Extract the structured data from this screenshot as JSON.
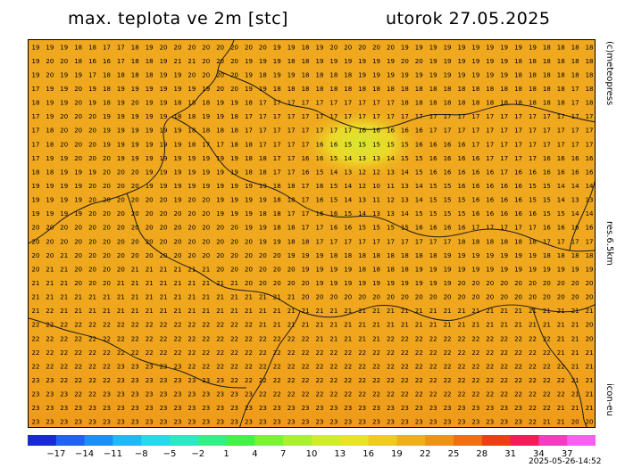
{
  "header": {
    "title": "max. teplota ve 2m [stc]",
    "date": "utorok 27.05.2025"
  },
  "side_labels": {
    "credit": "(c)meteopress",
    "resolution": "res.6.5km",
    "model": "icon-eu"
  },
  "footer": {
    "run_time": "2025-05-26-14:52"
  },
  "colorbar": {
    "tick_labels": [
      "−17",
      "−14",
      "−11",
      "−8",
      "−5",
      "−2",
      "1",
      "4",
      "7",
      "10",
      "13",
      "16",
      "19",
      "22",
      "25",
      "28",
      "31",
      "34",
      "37"
    ],
    "colors": [
      "#1a2ad2",
      "#1f63ee",
      "#1c8ff5",
      "#22b8f7",
      "#29d7f1",
      "#2fe7c5",
      "#34ef86",
      "#44f246",
      "#7af235",
      "#a9f032",
      "#cfec2f",
      "#e9e22b",
      "#f1c923",
      "#f0ae1e",
      "#ef9318",
      "#ee6f14",
      "#ea4012",
      "#ef1e59",
      "#f23cc4",
      "#f75ff3"
    ]
  },
  "map": {
    "grid": {
      "cols": 40,
      "rows": 28,
      "rows_values": [
        [
          19,
          19,
          19,
          18,
          18,
          17,
          17,
          18,
          19,
          20,
          20,
          20,
          20,
          20,
          20,
          20,
          20,
          19,
          19,
          18,
          19,
          20,
          20,
          20,
          20,
          20,
          19,
          19,
          19,
          19,
          19,
          19,
          19,
          19,
          19,
          19,
          18,
          18,
          18,
          18
        ],
        [
          19,
          20,
          20,
          18,
          16,
          16,
          17,
          18,
          18,
          19,
          21,
          21,
          20,
          20,
          20,
          19,
          19,
          19,
          18,
          18,
          19,
          19,
          19,
          19,
          19,
          19,
          20,
          20,
          19,
          19,
          19,
          19,
          19,
          19,
          18,
          18,
          18,
          18,
          18,
          18
        ],
        [
          19,
          20,
          19,
          19,
          17,
          18,
          18,
          18,
          18,
          19,
          19,
          20,
          20,
          20,
          20,
          19,
          18,
          19,
          19,
          18,
          18,
          18,
          18,
          19,
          19,
          19,
          19,
          19,
          19,
          19,
          19,
          19,
          19,
          19,
          18,
          18,
          18,
          18,
          18,
          18
        ],
        [
          17,
          19,
          19,
          20,
          19,
          18,
          19,
          19,
          19,
          19,
          19,
          19,
          19,
          20,
          20,
          19,
          19,
          18,
          18,
          18,
          18,
          18,
          18,
          18,
          18,
          18,
          18,
          18,
          18,
          18,
          18,
          18,
          18,
          18,
          18,
          18,
          18,
          18,
          17,
          18
        ],
        [
          18,
          19,
          19,
          20,
          19,
          18,
          19,
          20,
          19,
          19,
          18,
          18,
          18,
          19,
          19,
          18,
          17,
          17,
          17,
          17,
          17,
          17,
          17,
          17,
          17,
          17,
          18,
          18,
          18,
          18,
          18,
          18,
          18,
          18,
          18,
          18,
          18,
          18,
          17,
          18
        ],
        [
          17,
          19,
          20,
          20,
          20,
          19,
          19,
          19,
          19,
          19,
          18,
          18,
          19,
          19,
          18,
          17,
          17,
          17,
          17,
          17,
          17,
          17,
          17,
          17,
          17,
          17,
          17,
          17,
          17,
          17,
          17,
          17,
          17,
          17,
          17,
          17,
          17,
          17,
          17,
          17
        ],
        [
          17,
          18,
          20,
          20,
          20,
          19,
          19,
          19,
          19,
          19,
          19,
          18,
          18,
          18,
          18,
          17,
          17,
          17,
          17,
          17,
          17,
          17,
          17,
          16,
          16,
          16,
          16,
          16,
          17,
          17,
          17,
          17,
          17,
          17,
          17,
          17,
          17,
          17,
          17,
          17
        ],
        [
          17,
          18,
          20,
          20,
          20,
          19,
          19,
          19,
          19,
          19,
          19,
          18,
          17,
          17,
          18,
          18,
          17,
          17,
          17,
          17,
          16,
          16,
          15,
          15,
          15,
          15,
          15,
          16,
          16,
          16,
          16,
          17,
          17,
          17,
          17,
          17,
          17,
          17,
          17,
          17
        ],
        [
          17,
          19,
          19,
          20,
          20,
          20,
          19,
          19,
          19,
          19,
          19,
          19,
          19,
          19,
          19,
          18,
          18,
          17,
          17,
          16,
          16,
          15,
          14,
          13,
          13,
          14,
          15,
          15,
          16,
          16,
          16,
          16,
          17,
          17,
          17,
          17,
          16,
          16,
          16,
          16
        ],
        [
          18,
          18,
          19,
          19,
          19,
          20,
          20,
          20,
          19,
          19,
          19,
          19,
          19,
          19,
          19,
          18,
          18,
          17,
          17,
          16,
          15,
          14,
          13,
          12,
          12,
          13,
          14,
          15,
          16,
          16,
          16,
          16,
          16,
          17,
          16,
          16,
          16,
          16,
          16,
          16
        ],
        [
          19,
          19,
          19,
          19,
          20,
          20,
          20,
          20,
          19,
          19,
          19,
          19,
          19,
          19,
          19,
          19,
          19,
          18,
          18,
          17,
          16,
          15,
          14,
          12,
          10,
          11,
          13,
          14,
          15,
          15,
          16,
          16,
          16,
          16,
          16,
          15,
          15,
          14,
          14,
          14
        ],
        [
          19,
          19,
          19,
          19,
          20,
          20,
          20,
          20,
          20,
          20,
          19,
          20,
          20,
          19,
          19,
          19,
          19,
          18,
          18,
          17,
          16,
          15,
          14,
          13,
          11,
          12,
          13,
          14,
          15,
          15,
          15,
          16,
          16,
          16,
          16,
          15,
          15,
          14,
          13,
          13
        ],
        [
          19,
          19,
          19,
          19,
          20,
          20,
          20,
          20,
          20,
          20,
          20,
          20,
          20,
          19,
          19,
          19,
          18,
          18,
          17,
          17,
          16,
          16,
          15,
          14,
          13,
          13,
          14,
          15,
          15,
          15,
          15,
          16,
          16,
          16,
          16,
          16,
          15,
          15,
          14,
          14
        ],
        [
          20,
          20,
          20,
          20,
          20,
          20,
          20,
          20,
          20,
          20,
          20,
          20,
          20,
          20,
          20,
          19,
          19,
          18,
          18,
          17,
          17,
          16,
          16,
          15,
          15,
          15,
          15,
          16,
          16,
          16,
          16,
          17,
          17,
          17,
          17,
          17,
          16,
          16,
          16,
          16
        ],
        [
          20,
          20,
          20,
          20,
          20,
          20,
          20,
          20,
          20,
          20,
          20,
          20,
          20,
          20,
          20,
          20,
          19,
          19,
          18,
          18,
          17,
          17,
          17,
          17,
          17,
          17,
          17,
          17,
          17,
          17,
          18,
          18,
          18,
          18,
          18,
          18,
          17,
          17,
          17,
          17
        ],
        [
          20,
          20,
          21,
          20,
          20,
          20,
          20,
          20,
          20,
          20,
          20,
          20,
          20,
          20,
          20,
          20,
          20,
          20,
          19,
          19,
          19,
          18,
          18,
          18,
          18,
          18,
          18,
          18,
          18,
          19,
          19,
          19,
          19,
          19,
          19,
          19,
          18,
          18,
          18,
          18
        ],
        [
          20,
          21,
          21,
          20,
          20,
          20,
          20,
          21,
          21,
          21,
          21,
          21,
          21,
          20,
          20,
          20,
          20,
          20,
          20,
          19,
          19,
          19,
          19,
          18,
          18,
          18,
          18,
          19,
          19,
          19,
          19,
          19,
          19,
          19,
          19,
          19,
          19,
          19,
          19,
          19
        ],
        [
          21,
          21,
          21,
          20,
          20,
          20,
          21,
          21,
          21,
          21,
          21,
          21,
          21,
          21,
          21,
          20,
          20,
          20,
          20,
          20,
          19,
          19,
          19,
          19,
          19,
          19,
          19,
          19,
          19,
          19,
          20,
          20,
          20,
          20,
          20,
          20,
          20,
          20,
          20,
          20
        ],
        [
          21,
          21,
          21,
          21,
          21,
          21,
          21,
          21,
          21,
          21,
          21,
          21,
          21,
          21,
          21,
          21,
          21,
          21,
          21,
          20,
          20,
          20,
          20,
          20,
          20,
          20,
          20,
          20,
          20,
          20,
          20,
          20,
          20,
          20,
          20,
          20,
          20,
          20,
          20,
          20
        ],
        [
          21,
          22,
          21,
          21,
          21,
          21,
          21,
          21,
          21,
          21,
          21,
          21,
          21,
          21,
          21,
          21,
          21,
          21,
          21,
          21,
          21,
          21,
          21,
          21,
          21,
          21,
          21,
          21,
          21,
          21,
          21,
          21,
          21,
          21,
          21,
          21,
          21,
          21,
          21,
          21
        ],
        [
          22,
          22,
          22,
          22,
          22,
          22,
          22,
          22,
          22,
          22,
          22,
          22,
          22,
          22,
          22,
          22,
          21,
          21,
          21,
          21,
          21,
          21,
          21,
          21,
          21,
          21,
          21,
          21,
          21,
          21,
          21,
          21,
          21,
          21,
          21,
          21,
          21,
          21,
          21,
          20
        ],
        [
          22,
          22,
          22,
          22,
          22,
          22,
          22,
          22,
          22,
          22,
          22,
          22,
          22,
          22,
          22,
          22,
          22,
          22,
          22,
          22,
          21,
          21,
          21,
          21,
          21,
          22,
          22,
          22,
          22,
          22,
          22,
          22,
          22,
          22,
          22,
          22,
          22,
          21,
          21,
          20
        ],
        [
          22,
          22,
          22,
          22,
          22,
          22,
          22,
          22,
          22,
          22,
          22,
          22,
          22,
          22,
          22,
          22,
          22,
          22,
          22,
          22,
          22,
          22,
          22,
          22,
          22,
          22,
          22,
          22,
          22,
          22,
          22,
          22,
          22,
          22,
          22,
          22,
          22,
          21,
          21,
          21
        ],
        [
          22,
          22,
          22,
          22,
          22,
          22,
          23,
          23,
          23,
          23,
          23,
          22,
          22,
          22,
          22,
          22,
          22,
          22,
          22,
          22,
          22,
          22,
          22,
          22,
          22,
          22,
          22,
          22,
          22,
          22,
          22,
          22,
          22,
          22,
          22,
          22,
          22,
          22,
          21,
          21
        ],
        [
          23,
          23,
          22,
          22,
          22,
          22,
          23,
          23,
          23,
          23,
          23,
          23,
          23,
          23,
          22,
          22,
          22,
          22,
          22,
          22,
          22,
          22,
          22,
          22,
          22,
          22,
          22,
          22,
          22,
          22,
          22,
          22,
          22,
          22,
          22,
          22,
          22,
          22,
          21,
          21
        ],
        [
          23,
          23,
          23,
          22,
          22,
          23,
          23,
          23,
          23,
          23,
          23,
          23,
          23,
          23,
          23,
          23,
          22,
          22,
          22,
          22,
          22,
          22,
          22,
          22,
          22,
          22,
          22,
          22,
          22,
          22,
          22,
          22,
          22,
          22,
          22,
          22,
          22,
          22,
          21,
          21
        ],
        [
          23,
          23,
          23,
          23,
          23,
          23,
          23,
          23,
          23,
          23,
          23,
          23,
          23,
          23,
          23,
          23,
          23,
          23,
          23,
          23,
          23,
          23,
          23,
          23,
          23,
          23,
          23,
          23,
          23,
          23,
          23,
          23,
          23,
          23,
          23,
          22,
          22,
          21,
          21,
          21
        ],
        [
          23,
          23,
          23,
          23,
          23,
          23,
          23,
          23,
          23,
          23,
          23,
          23,
          23,
          23,
          23,
          23,
          23,
          23,
          23,
          23,
          23,
          23,
          23,
          23,
          23,
          23,
          23,
          23,
          23,
          23,
          23,
          23,
          23,
          23,
          23,
          22,
          21,
          21,
          20,
          20
        ]
      ]
    }
  }
}
